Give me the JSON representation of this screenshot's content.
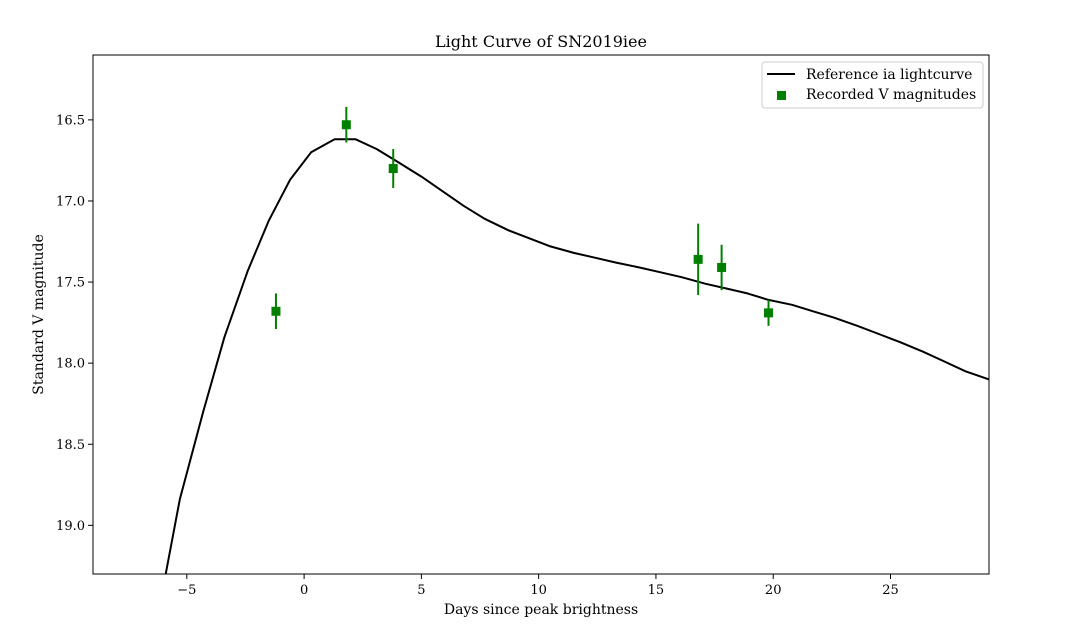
{
  "chart_data": {
    "type": "line",
    "title": "Light Curve of SN2019iee",
    "xlabel": "Days since peak brightness",
    "ylabel": "Standard V magnitude",
    "xlim": [
      -9.0,
      29.2
    ],
    "ylim": [
      19.3,
      16.1
    ],
    "y_inverted": true,
    "grid": false,
    "legend_position": "top-right",
    "x_ticks": [
      -5,
      0,
      5,
      10,
      15,
      20,
      25
    ],
    "x_tick_labels": [
      "−5",
      "0",
      "5",
      "10",
      "15",
      "20",
      "25"
    ],
    "y_ticks": [
      16.5,
      17.0,
      17.5,
      18.0,
      18.5,
      19.0
    ],
    "y_tick_labels": [
      "16.5",
      "17.0",
      "17.5",
      "18.0",
      "18.5",
      "19.0"
    ],
    "series": [
      {
        "name": "Reference ia lightcurve",
        "kind": "line",
        "color": "#000000",
        "points": [
          [
            -5.9,
            19.3
          ],
          [
            -5.3,
            18.84
          ],
          [
            -4.3,
            18.3
          ],
          [
            -3.4,
            17.84
          ],
          [
            -2.4,
            17.43
          ],
          [
            -1.5,
            17.12
          ],
          [
            -0.6,
            16.87
          ],
          [
            0.3,
            16.7
          ],
          [
            1.3,
            16.62
          ],
          [
            2.2,
            16.62
          ],
          [
            3.1,
            16.68
          ],
          [
            4.0,
            16.76
          ],
          [
            5.0,
            16.85
          ],
          [
            5.9,
            16.94
          ],
          [
            6.8,
            17.03
          ],
          [
            7.7,
            17.11
          ],
          [
            8.7,
            17.18
          ],
          [
            9.6,
            17.23
          ],
          [
            10.5,
            17.28
          ],
          [
            11.5,
            17.32
          ],
          [
            12.4,
            17.35
          ],
          [
            13.3,
            17.38
          ],
          [
            14.3,
            17.41
          ],
          [
            15.2,
            17.44
          ],
          [
            16.1,
            17.47
          ],
          [
            17.1,
            17.51
          ],
          [
            18.0,
            17.54
          ],
          [
            18.9,
            17.57
          ],
          [
            19.8,
            17.61
          ],
          [
            20.8,
            17.64
          ],
          [
            21.7,
            17.68
          ],
          [
            22.6,
            17.72
          ],
          [
            23.6,
            17.77
          ],
          [
            24.5,
            17.82
          ],
          [
            25.4,
            17.87
          ],
          [
            26.4,
            17.93
          ],
          [
            27.3,
            17.99
          ],
          [
            28.2,
            18.05
          ],
          [
            29.2,
            18.1
          ]
        ]
      },
      {
        "name": "Recorded V magnitudes",
        "kind": "errorbar",
        "color": "#008000",
        "marker": "square",
        "points": [
          {
            "x": -1.2,
            "y": 17.68,
            "err": 0.11
          },
          {
            "x": 1.8,
            "y": 16.53,
            "err": 0.11
          },
          {
            "x": 3.8,
            "y": 16.8,
            "err": 0.12
          },
          {
            "x": 16.8,
            "y": 17.36,
            "err": 0.22
          },
          {
            "x": 17.8,
            "y": 17.41,
            "err": 0.14
          },
          {
            "x": 19.8,
            "y": 17.69,
            "err": 0.08
          }
        ]
      }
    ]
  }
}
